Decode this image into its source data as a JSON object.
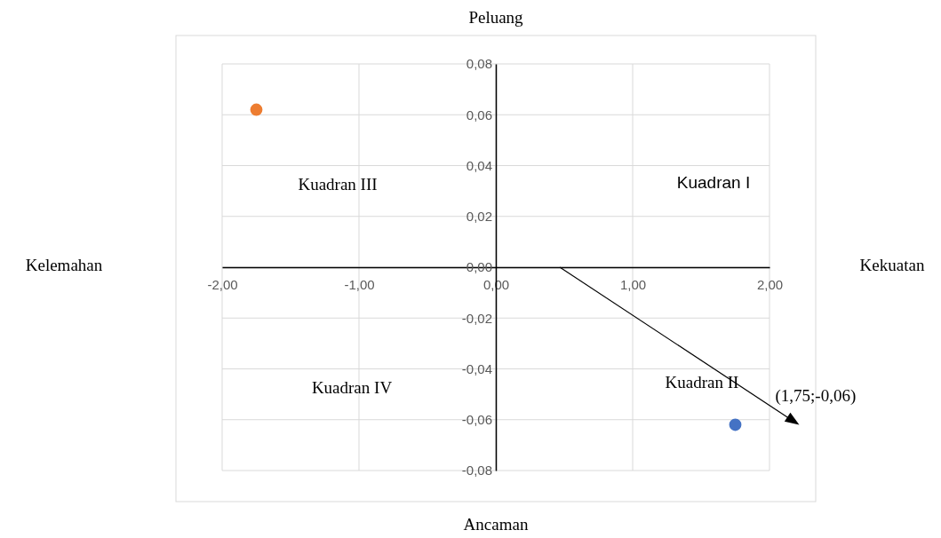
{
  "chart_data": {
    "type": "scatter",
    "x": [
      -1.75,
      1.75
    ],
    "values": [
      0.062,
      -0.062
    ],
    "colors": [
      "#ed7d31",
      "#4472c4"
    ],
    "xlim": [
      -2,
      2
    ],
    "ylim": [
      -0.08,
      0.08
    ],
    "xticks": [
      {
        "value": -2,
        "label": "-2,00"
      },
      {
        "value": -1,
        "label": "-1,00"
      },
      {
        "value": 0,
        "label": "0,00"
      },
      {
        "value": 1,
        "label": "1,00"
      },
      {
        "value": 2,
        "label": "2,00"
      }
    ],
    "yticks": [
      {
        "value": -0.08,
        "label": "-0,08"
      },
      {
        "value": -0.06,
        "label": "-0,06"
      },
      {
        "value": -0.04,
        "label": "-0,04"
      },
      {
        "value": -0.02,
        "label": "-0,02"
      },
      {
        "value": 0,
        "label": "0,00"
      },
      {
        "value": 0.02,
        "label": "0,02"
      },
      {
        "value": 0.04,
        "label": "0,04"
      },
      {
        "value": 0.06,
        "label": "0,06"
      },
      {
        "value": 0.08,
        "label": "0,08"
      }
    ],
    "grid": true,
    "marker": "circle",
    "annotations": [
      "Peluang",
      "Ancaman",
      "Kelemahan",
      "Kekuatan",
      "Kuadran I",
      "Kuadran II",
      "Kuadran III",
      "Kuadran IV",
      {
        "text": "(1,75;-0,06)",
        "x": 1.75,
        "y": -0.062
      }
    ]
  }
}
